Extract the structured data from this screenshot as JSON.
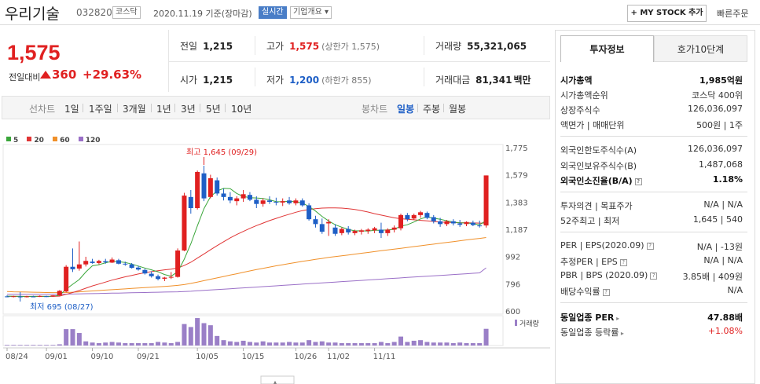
{
  "header": {
    "stock_name": "우리기술",
    "stock_code": "032820",
    "market_badge": "코스닥",
    "date_text": "2020.11.19  기준(장마감)",
    "realtime_badge": "실시간",
    "company_overview": "기업개요",
    "my_stock_button": "+ MY STOCK 추가",
    "quick_order": "빠른주문"
  },
  "price": {
    "current": "1,575",
    "change_label": "전일대비",
    "change_amount": "360",
    "change_percent": "+29.63%"
  },
  "summary": {
    "prev_close_label": "전일",
    "prev_close": "1,215",
    "high_label": "고가",
    "high": "1,575",
    "high_note": "(상한가 1,575)",
    "volume_label": "거래량",
    "volume": "55,321,065",
    "open_label": "시가",
    "open": "1,215",
    "low_label": "저가",
    "low": "1,200",
    "low_note": "(하한가 855)",
    "amount_label": "거래대금",
    "amount": "81,341",
    "amount_unit": "백만"
  },
  "period_tabs": {
    "line_label": "선차트",
    "items": [
      "1일",
      "1주일",
      "3개월",
      "1년",
      "3년",
      "5년",
      "10년"
    ],
    "candle_label": "봉차트",
    "candle_items": [
      "일봉",
      "주봉",
      "월봉"
    ],
    "selected": "일봉"
  },
  "chart_data": {
    "type": "candlestick",
    "legend": [
      {
        "name": "5",
        "color": "#3aa63a"
      },
      {
        "name": "20",
        "color": "#e03535"
      },
      {
        "name": "60",
        "color": "#f0902a"
      },
      {
        "name": "120",
        "color": "#9a6fc7"
      }
    ],
    "y_ticks": [
      "1,775",
      "1,579",
      "1,383",
      "1,187",
      "992",
      "796",
      "600"
    ],
    "x_ticks": [
      "08/24",
      "09/01",
      "09/10",
      "09/21",
      "10/05",
      "10/15",
      "10/26",
      "11/02",
      "11/11"
    ],
    "volume_label": "거래량",
    "high_annotation": "최고 1,645 (09/29)",
    "low_annotation": "최저 695 (08/27)",
    "candles": [
      {
        "o": 705,
        "h": 712,
        "l": 698,
        "c": 702
      },
      {
        "o": 702,
        "h": 710,
        "l": 698,
        "c": 706
      },
      {
        "o": 704,
        "h": 708,
        "l": 695,
        "c": 700
      },
      {
        "o": 701,
        "h": 709,
        "l": 697,
        "c": 705
      },
      {
        "o": 704,
        "h": 710,
        "l": 699,
        "c": 703
      },
      {
        "o": 703,
        "h": 712,
        "l": 700,
        "c": 708
      },
      {
        "o": 706,
        "h": 710,
        "l": 700,
        "c": 704
      },
      {
        "o": 704,
        "h": 714,
        "l": 701,
        "c": 712
      },
      {
        "o": 712,
        "h": 750,
        "l": 708,
        "c": 745
      },
      {
        "o": 740,
        "h": 930,
        "l": 735,
        "c": 918
      },
      {
        "o": 918,
        "h": 1050,
        "l": 880,
        "c": 900
      },
      {
        "o": 905,
        "h": 1100,
        "l": 890,
        "c": 935
      },
      {
        "o": 935,
        "h": 990,
        "l": 920,
        "c": 960
      },
      {
        "o": 955,
        "h": 975,
        "l": 940,
        "c": 945
      },
      {
        "o": 945,
        "h": 968,
        "l": 935,
        "c": 960
      },
      {
        "o": 958,
        "h": 975,
        "l": 940,
        "c": 950
      },
      {
        "o": 948,
        "h": 985,
        "l": 945,
        "c": 970
      },
      {
        "o": 965,
        "h": 975,
        "l": 935,
        "c": 940
      },
      {
        "o": 940,
        "h": 955,
        "l": 925,
        "c": 935
      },
      {
        "o": 935,
        "h": 945,
        "l": 905,
        "c": 910
      },
      {
        "o": 912,
        "h": 925,
        "l": 890,
        "c": 898
      },
      {
        "o": 895,
        "h": 905,
        "l": 862,
        "c": 870
      },
      {
        "o": 868,
        "h": 885,
        "l": 840,
        "c": 850
      },
      {
        "o": 850,
        "h": 862,
        "l": 820,
        "c": 830
      },
      {
        "o": 832,
        "h": 845,
        "l": 815,
        "c": 840
      },
      {
        "o": 840,
        "h": 880,
        "l": 830,
        "c": 845
      },
      {
        "o": 845,
        "h": 1050,
        "l": 840,
        "c": 1035
      },
      {
        "o": 1035,
        "h": 1450,
        "l": 1030,
        "c": 1430
      },
      {
        "o": 1420,
        "h": 1470,
        "l": 1300,
        "c": 1340
      },
      {
        "o": 1340,
        "h": 1610,
        "l": 1330,
        "c": 1600
      },
      {
        "o": 1590,
        "h": 1645,
        "l": 1390,
        "c": 1410
      },
      {
        "o": 1420,
        "h": 1580,
        "l": 1410,
        "c": 1555
      },
      {
        "o": 1540,
        "h": 1560,
        "l": 1430,
        "c": 1445
      },
      {
        "o": 1445,
        "h": 1480,
        "l": 1395,
        "c": 1420
      },
      {
        "o": 1420,
        "h": 1455,
        "l": 1375,
        "c": 1395
      },
      {
        "o": 1390,
        "h": 1425,
        "l": 1360,
        "c": 1410
      },
      {
        "o": 1410,
        "h": 1470,
        "l": 1385,
        "c": 1440
      },
      {
        "o": 1435,
        "h": 1455,
        "l": 1390,
        "c": 1400
      },
      {
        "o": 1400,
        "h": 1425,
        "l": 1340,
        "c": 1370
      },
      {
        "o": 1370,
        "h": 1410,
        "l": 1350,
        "c": 1395
      },
      {
        "o": 1395,
        "h": 1425,
        "l": 1370,
        "c": 1385
      },
      {
        "o": 1385,
        "h": 1415,
        "l": 1360,
        "c": 1380
      },
      {
        "o": 1380,
        "h": 1410,
        "l": 1355,
        "c": 1390
      },
      {
        "o": 1395,
        "h": 1420,
        "l": 1365,
        "c": 1375
      },
      {
        "o": 1375,
        "h": 1410,
        "l": 1360,
        "c": 1395
      },
      {
        "o": 1395,
        "h": 1410,
        "l": 1350,
        "c": 1360
      },
      {
        "o": 1360,
        "h": 1375,
        "l": 1250,
        "c": 1260
      },
      {
        "o": 1260,
        "h": 1285,
        "l": 1200,
        "c": 1225
      },
      {
        "o": 1225,
        "h": 1265,
        "l": 1155,
        "c": 1170
      },
      {
        "o": 1230,
        "h": 1260,
        "l": 1140,
        "c": 1240
      },
      {
        "o": 1200,
        "h": 1225,
        "l": 1140,
        "c": 1155
      },
      {
        "o": 1160,
        "h": 1200,
        "l": 1145,
        "c": 1190
      },
      {
        "o": 1190,
        "h": 1210,
        "l": 1150,
        "c": 1165
      },
      {
        "o": 1160,
        "h": 1185,
        "l": 1145,
        "c": 1175
      },
      {
        "o": 1170,
        "h": 1190,
        "l": 1150,
        "c": 1180
      },
      {
        "o": 1175,
        "h": 1195,
        "l": 1155,
        "c": 1185
      },
      {
        "o": 1180,
        "h": 1205,
        "l": 1160,
        "c": 1195
      },
      {
        "o": 1185,
        "h": 1235,
        "l": 1125,
        "c": 1160
      },
      {
        "o": 1160,
        "h": 1195,
        "l": 1140,
        "c": 1185
      },
      {
        "o": 1185,
        "h": 1215,
        "l": 1165,
        "c": 1200
      },
      {
        "o": 1195,
        "h": 1300,
        "l": 1180,
        "c": 1290
      },
      {
        "o": 1290,
        "h": 1305,
        "l": 1245,
        "c": 1260
      },
      {
        "o": 1265,
        "h": 1300,
        "l": 1255,
        "c": 1290
      },
      {
        "o": 1290,
        "h": 1320,
        "l": 1270,
        "c": 1310
      },
      {
        "o": 1305,
        "h": 1315,
        "l": 1260,
        "c": 1270
      },
      {
        "o": 1275,
        "h": 1290,
        "l": 1230,
        "c": 1245
      },
      {
        "o": 1245,
        "h": 1270,
        "l": 1205,
        "c": 1225
      },
      {
        "o": 1225,
        "h": 1255,
        "l": 1210,
        "c": 1245
      },
      {
        "o": 1245,
        "h": 1260,
        "l": 1215,
        "c": 1230
      },
      {
        "o": 1230,
        "h": 1255,
        "l": 1205,
        "c": 1220
      },
      {
        "o": 1225,
        "h": 1245,
        "l": 1210,
        "c": 1240
      },
      {
        "o": 1235,
        "h": 1250,
        "l": 1210,
        "c": 1218
      },
      {
        "o": 1215,
        "h": 1250,
        "l": 1200,
        "c": 1210
      },
      {
        "o": 1215,
        "h": 1575,
        "l": 1200,
        "c": 1575
      }
    ],
    "volumes": [
      0.02,
      0.02,
      0.02,
      0.02,
      0.02,
      0.02,
      0.02,
      0.02,
      0.04,
      0.55,
      0.55,
      0.42,
      0.14,
      0.1,
      0.08,
      0.1,
      0.12,
      0.1,
      0.08,
      0.08,
      0.08,
      0.08,
      0.08,
      0.12,
      0.1,
      0.08,
      0.12,
      0.72,
      0.62,
      0.92,
      0.75,
      0.68,
      0.32,
      0.18,
      0.14,
      0.12,
      0.16,
      0.12,
      0.1,
      0.14,
      0.1,
      0.1,
      0.1,
      0.12,
      0.1,
      0.1,
      0.18,
      0.12,
      0.14,
      0.1,
      0.1,
      0.08,
      0.08,
      0.08,
      0.08,
      0.08,
      0.08,
      0.12,
      0.08,
      0.12,
      0.3,
      0.12,
      0.16,
      0.18,
      0.12,
      0.1,
      0.1,
      0.1,
      0.08,
      0.1,
      0.08,
      0.08,
      0.08,
      0.56
    ],
    "ma": {
      "ma5": [
        707,
        706,
        705,
        704,
        705,
        705,
        705,
        706,
        713,
        757,
        792,
        826,
        880,
        925,
        933,
        947,
        957,
        955,
        949,
        937,
        923,
        909,
        896,
        882,
        862,
        850,
        882,
        972,
        1083,
        1212,
        1336,
        1422,
        1464,
        1482,
        1480,
        1445,
        1424,
        1415,
        1413,
        1409,
        1400,
        1387,
        1386,
        1389,
        1385,
        1376,
        1352,
        1319,
        1280,
        1248,
        1220,
        1203,
        1187,
        1176,
        1177,
        1175,
        1180,
        1181,
        1183,
        1187,
        1210,
        1220,
        1240,
        1262,
        1277,
        1268,
        1260,
        1249,
        1240,
        1234,
        1233,
        1228,
        1220,
        1250
      ],
      "ma20": [
        705,
        705,
        705,
        705,
        705,
        705,
        705,
        705,
        707,
        720,
        733,
        747,
        764,
        780,
        794,
        808,
        822,
        834,
        846,
        856,
        866,
        875,
        883,
        890,
        896,
        901,
        909,
        927,
        950,
        980,
        1010,
        1040,
        1070,
        1098,
        1126,
        1150,
        1172,
        1194,
        1214,
        1232,
        1250,
        1266,
        1282,
        1296,
        1310,
        1322,
        1330,
        1336,
        1340,
        1342,
        1342,
        1340,
        1336,
        1330,
        1322,
        1312,
        1300,
        1290,
        1280,
        1270,
        1264,
        1260,
        1256,
        1252,
        1248,
        1244,
        1240,
        1238,
        1236,
        1235,
        1234,
        1233,
        1232,
        1232
      ],
      "ma60": [
        740,
        738,
        737,
        736,
        735,
        734,
        733,
        732,
        732,
        733,
        735,
        738,
        741,
        744,
        747,
        750,
        753,
        756,
        759,
        762,
        765,
        768,
        771,
        774,
        777,
        780,
        784,
        790,
        798,
        808,
        818,
        828,
        838,
        848,
        858,
        868,
        878,
        888,
        898,
        907,
        916,
        925,
        933,
        941,
        949,
        957,
        964,
        971,
        978,
        985,
        991,
        997,
        1003,
        1009,
        1015,
        1021,
        1027,
        1033,
        1039,
        1045,
        1051,
        1057,
        1063,
        1069,
        1075,
        1081,
        1087,
        1093,
        1099,
        1105,
        1111,
        1117,
        1122,
        1128
      ],
      "ma120": [
        720,
        720,
        720,
        720,
        720,
        720,
        720,
        720,
        720,
        721,
        722,
        723,
        724,
        725,
        726,
        727,
        728,
        729,
        730,
        731,
        732,
        733,
        734,
        735,
        736,
        737,
        738,
        740,
        742,
        745,
        748,
        751,
        754,
        757,
        760,
        763,
        766,
        769,
        772,
        775,
        778,
        781,
        784,
        787,
        790,
        793,
        796,
        799,
        802,
        805,
        808,
        811,
        814,
        817,
        820,
        823,
        826,
        829,
        832,
        835,
        838,
        841,
        844,
        847,
        850,
        853,
        856,
        859,
        862,
        865,
        868,
        871,
        874,
        910
      ]
    }
  },
  "side_panel": {
    "tab_active": "투자정보",
    "tab_other": "호가10단계",
    "market_cap_label": "시가총액",
    "market_cap": "1,985억원",
    "cap_rank_label": "시가총액순위",
    "cap_rank": "코스닥 400위",
    "shares_label": "상장주식수",
    "shares": "126,036,097",
    "par_label": "액면가 | 매매단위",
    "par": "500원 | 1주",
    "foreign_limit_label": "외국인한도주식수(A)",
    "foreign_limit": "126,036,097",
    "foreign_hold_label": "외국인보유주식수(B)",
    "foreign_hold": "1,487,068",
    "foreign_ratio_label": "외국인소진율(B/A)",
    "foreign_ratio": "1.18%",
    "opinion_label": "투자의견 | 목표주가",
    "opinion": "N/A | N/A",
    "wk52_label": "52주최고 | 최저",
    "wk52": "1,645 | 540",
    "per_label": "PER | EPS(2020.09)",
    "per": "N/A | -13원",
    "est_per_label": "추정PER | EPS",
    "est_per": "N/A | N/A",
    "pbr_label": "PBR | BPS (2020.09)",
    "pbr": "3.85배 | 409원",
    "dividend_label": "배당수익률",
    "dividend": "N/A",
    "sector_per_label": "동일업종 PER",
    "sector_per": "47.88배",
    "sector_rate_label": "동일업종 등락률",
    "sector_rate": "+1.08%"
  }
}
